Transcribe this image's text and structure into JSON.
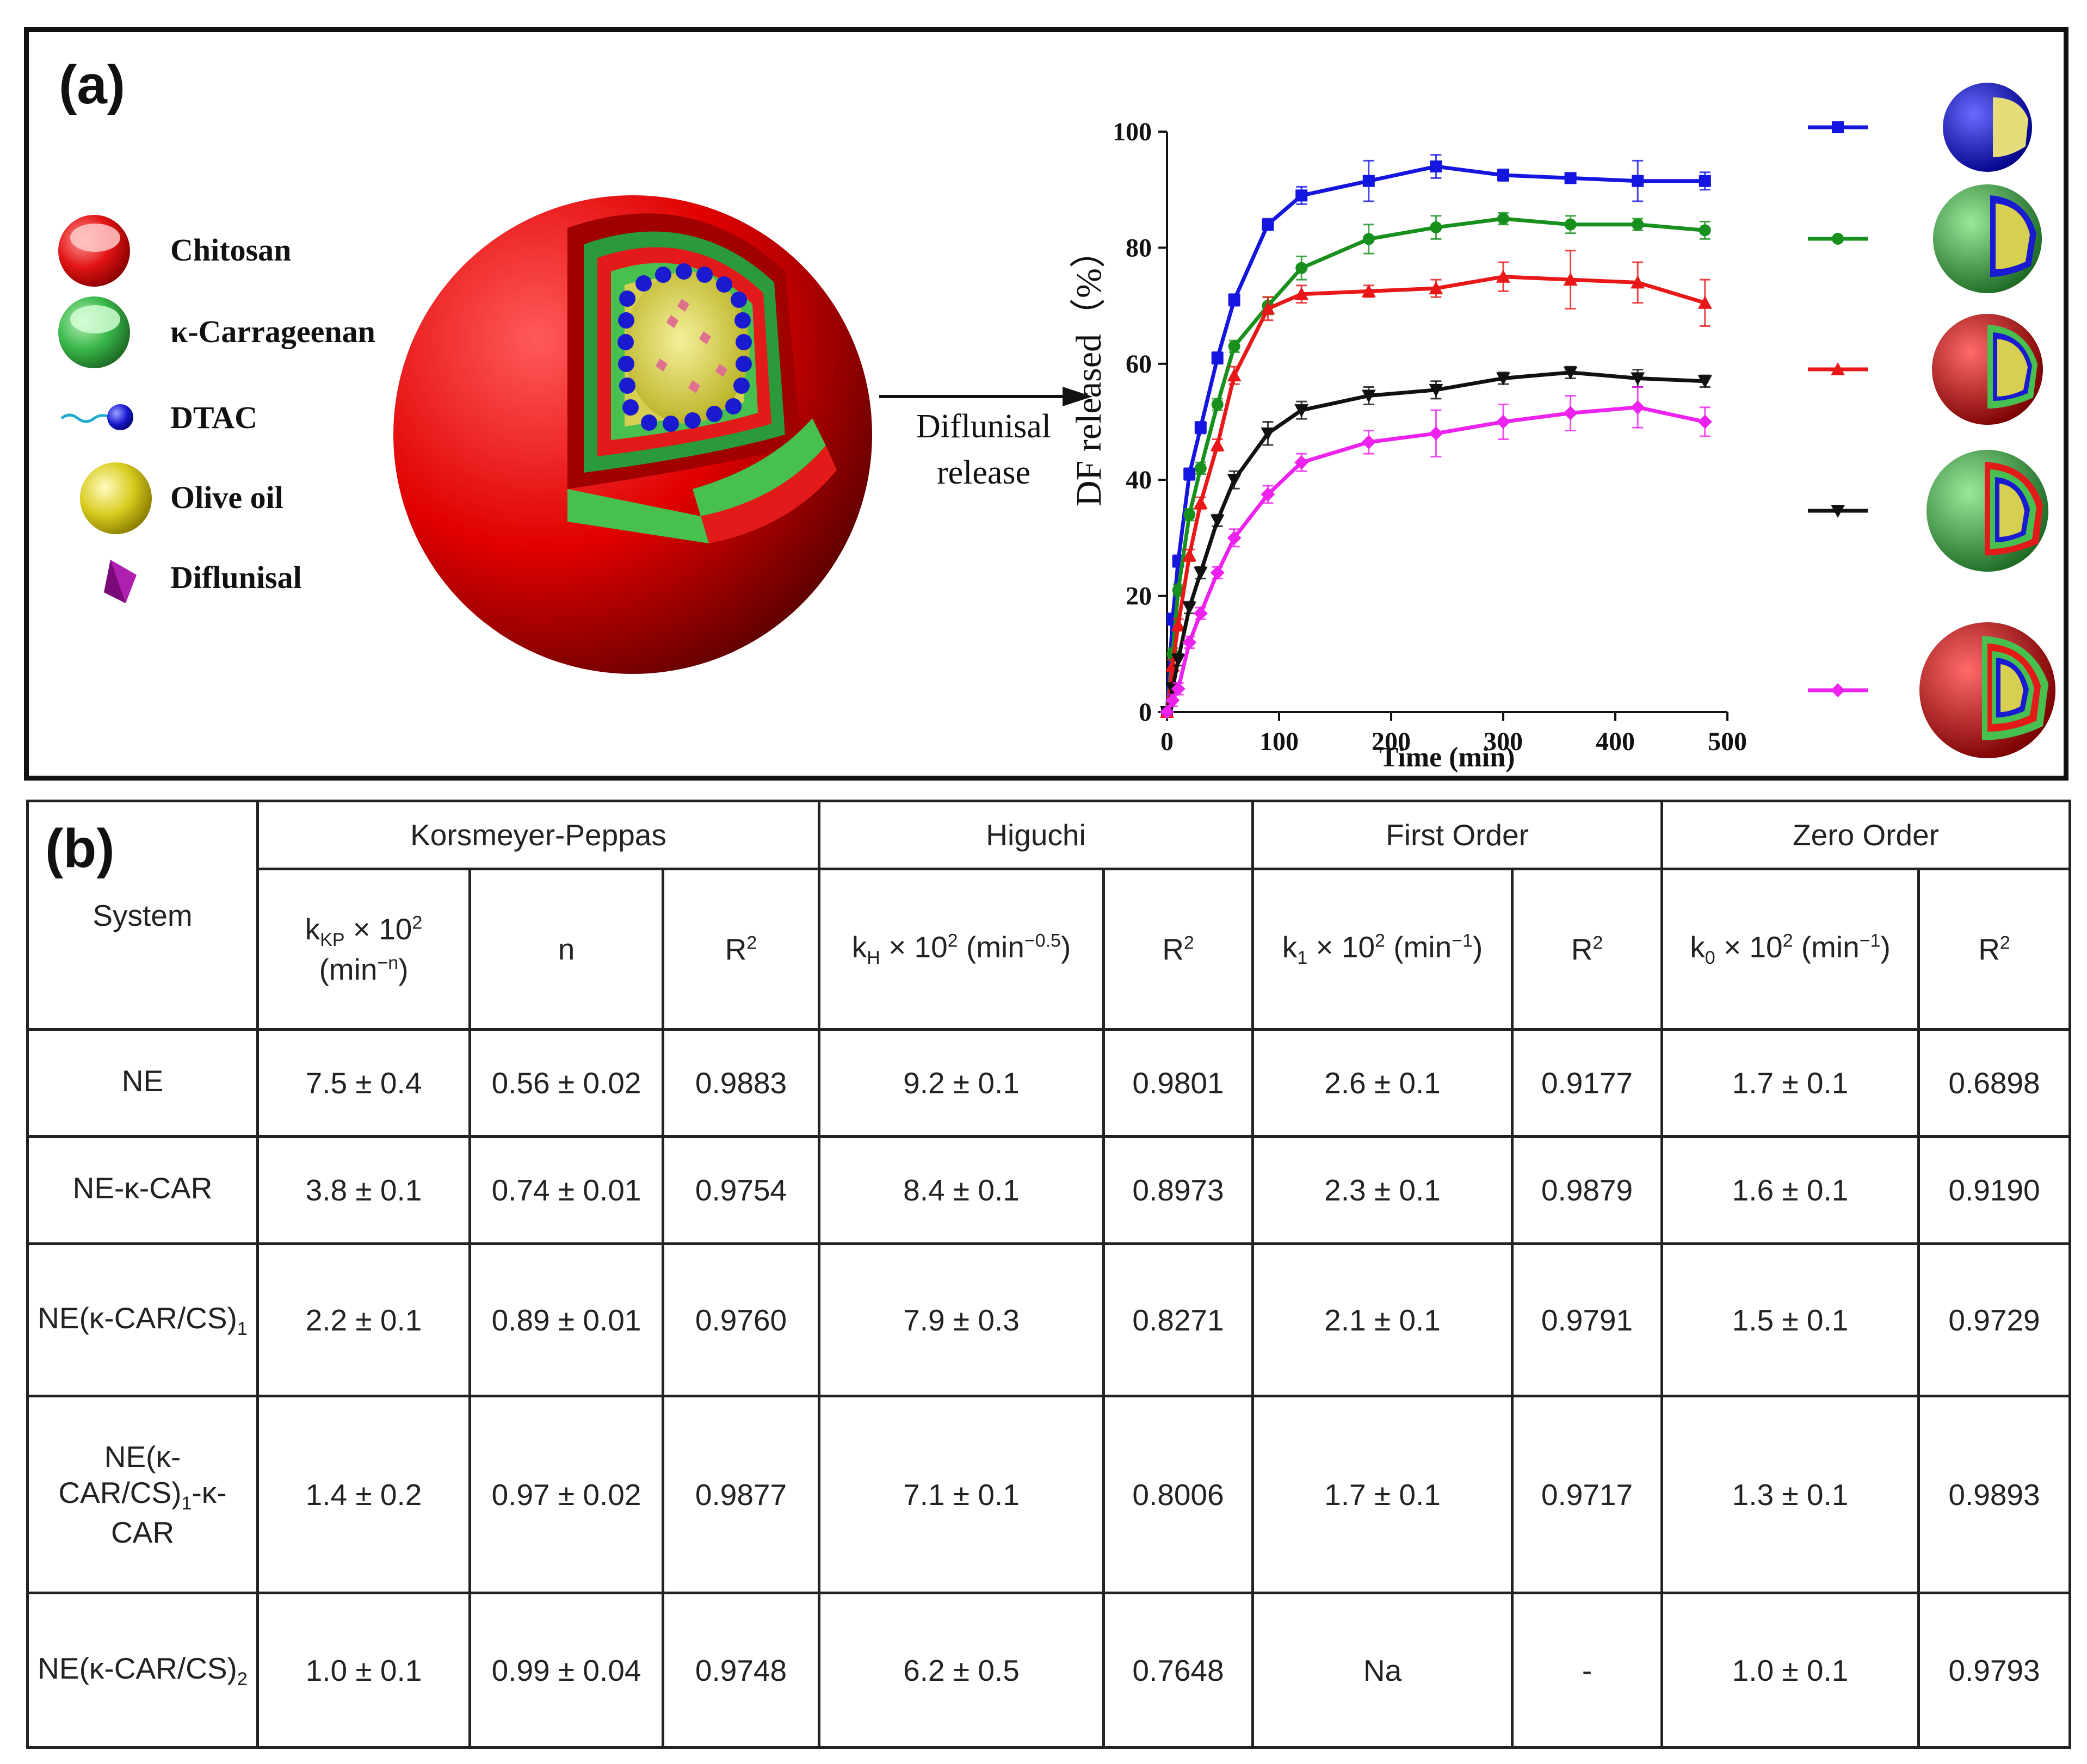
{
  "panel_a": {
    "label": "(a)",
    "legend_items": [
      {
        "label": "Chitosan",
        "icon": "chitosan-shell-icon",
        "color": "#e31414"
      },
      {
        "label": "κ-Carrageenan",
        "icon": "carrageenan-shell-icon",
        "color": "#3ab84a"
      },
      {
        "label": "DTAC",
        "icon": "dtac-surfactant-icon",
        "color": "#1a1ad0"
      },
      {
        "label": "Olive oil",
        "icon": "olive-oil-droplet-icon",
        "color": "#d8cc20"
      },
      {
        "label": "Diflunisal",
        "icon": "diflunisal-crystal-icon",
        "color": "#b020b0"
      }
    ],
    "arrow_label_line1": "Diflunisal",
    "arrow_label_line2": "release"
  },
  "chart_data": {
    "type": "line",
    "title": "",
    "xlabel": "Time (min)",
    "ylabel": "DF released（%）",
    "xlim": [
      0,
      500
    ],
    "ylim": [
      0,
      100
    ],
    "xticks": [
      0,
      100,
      200,
      300,
      400,
      500
    ],
    "yticks": [
      0,
      20,
      40,
      60,
      80,
      100
    ],
    "x": [
      0,
      5,
      10,
      20,
      30,
      45,
      60,
      90,
      120,
      180,
      240,
      300,
      360,
      420,
      480
    ],
    "series": [
      {
        "name": "NE",
        "color": "#1515e0",
        "marker": "square",
        "values": [
          0,
          16,
          26,
          41,
          49,
          61,
          71,
          84,
          89,
          91.5,
          94,
          92.5,
          92,
          91.5,
          91.5
        ],
        "errors": [
          0,
          1,
          1,
          1,
          1,
          1,
          1,
          1,
          1.5,
          3.5,
          2,
          1,
          0.5,
          3.5,
          1.5
        ]
      },
      {
        "name": "NE-κ-CAR",
        "color": "#18901e",
        "marker": "circle",
        "values": [
          0,
          10,
          21,
          34,
          42,
          53,
          63,
          70,
          76.5,
          81.5,
          83.5,
          85,
          84,
          84,
          83
        ],
        "errors": [
          0,
          1,
          1,
          1,
          1,
          1,
          1,
          1.5,
          2,
          2.5,
          2,
          1,
          1.5,
          1,
          1.5
        ]
      },
      {
        "name": "NE(κ-CAR/CS)1",
        "color": "#e81818",
        "marker": "triangle-up",
        "values": [
          0,
          8,
          15,
          27,
          36,
          46,
          58,
          69.5,
          72,
          72.5,
          73,
          75,
          74.5,
          74,
          70.5
        ],
        "errors": [
          0,
          1,
          1,
          1,
          1,
          1,
          1.5,
          2,
          1.5,
          1,
          1.5,
          2.5,
          5,
          3.5,
          4
        ]
      },
      {
        "name": "NE(κ-CAR/CS)1-κ-CAR",
        "color": "#111111",
        "marker": "triangle-down",
        "values": [
          0,
          4,
          9,
          18,
          24,
          33,
          40,
          48,
          52,
          54.5,
          55.5,
          57.5,
          58.5,
          57.5,
          57
        ],
        "errors": [
          0,
          1,
          1,
          1,
          1,
          1,
          1.5,
          2,
          1.5,
          1.5,
          1.5,
          1,
          1,
          1.5,
          1
        ]
      },
      {
        "name": "NE(κ-CAR/CS)2",
        "color": "#ee22ee",
        "marker": "diamond",
        "values": [
          0,
          2,
          4,
          12,
          17,
          24,
          30,
          37.5,
          43,
          46.5,
          48,
          50,
          51.5,
          52.5,
          50
        ],
        "errors": [
          0,
          1,
          1,
          1,
          1,
          1,
          1.5,
          1.5,
          1.5,
          2,
          4,
          3,
          3,
          3.5,
          2.5
        ]
      }
    ],
    "legend": "right, with nanocapsule schematics"
  },
  "panel_b": {
    "label": "(b)",
    "system_header": "System",
    "group_headers": [
      "Korsmeyer-Peppas",
      "Higuchi",
      "First Order",
      "Zero Order"
    ],
    "sub_headers": {
      "kkp_main": "k",
      "kkp_sub": "KP",
      "kkp_times": " × 10",
      "kkp_sup": "2",
      "kkp_unit_open": "(min",
      "kkp_unit_exp": "−n",
      "kkp_unit_close": ")",
      "n": "n",
      "r2_main": "R",
      "r2_sup": "2",
      "kh_main": "k",
      "kh_sub": "H",
      "kh_times": " × 10",
      "kh_sup": "2",
      "kh_unit_open": " (min",
      "kh_unit_exp": "−0.5",
      "kh_unit_close": ")",
      "k1_main": "k",
      "k1_sub": "1",
      "k1_times": " × 10",
      "k1_sup": "2",
      "k1_unit_open": " (min",
      "k1_unit_exp": "−1",
      "k1_unit_close": ")",
      "k0_main": "k",
      "k0_sub": "0",
      "k0_times": " × 10",
      "k0_sup": "2",
      "k0_unit_open": " (min",
      "k0_unit_exp": "−1",
      "k0_unit_close": ")"
    },
    "rows": [
      {
        "system": "NE",
        "sys_sub": "",
        "kkp": "7.5 ± 0.4",
        "n": "0.56 ± 0.02",
        "r2_kp": "0.9883",
        "kh": "9.2 ± 0.1",
        "r2_h": "0.9801",
        "k1": "2.6 ± 0.1",
        "r2_1": "0.9177",
        "k0": "1.7 ± 0.1",
        "r2_0": "0.6898"
      },
      {
        "system": "NE-κ-CAR",
        "sys_sub": "",
        "kkp": "3.8 ± 0.1",
        "n": "0.74 ± 0.01",
        "r2_kp": "0.9754",
        "kh": "8.4 ± 0.1",
        "r2_h": "0.8973",
        "k1": "2.3 ± 0.1",
        "r2_1": "0.9879",
        "k0": "1.6 ± 0.1",
        "r2_0": "0.9190"
      },
      {
        "system": "NE(κ-CAR/CS)",
        "sys_sub": "1",
        "kkp": "2.2 ± 0.1",
        "n": "0.89 ± 0.01",
        "r2_kp": "0.9760",
        "kh": "7.9 ± 0.3",
        "r2_h": "0.8271",
        "k1": "2.1 ± 0.1",
        "r2_1": "0.9791",
        "k0": "1.5 ± 0.1",
        "r2_0": "0.9729"
      },
      {
        "system_l1": "NE(κ-",
        "system_l2": "CAR/CS)",
        "system_l2_sub": "1",
        "system_l2_tail": "-κ-",
        "system_l3": "CAR",
        "kkp": "1.4 ± 0.2",
        "n": "0.97 ± 0.02",
        "r2_kp": "0.9877",
        "kh": "7.1 ± 0.1",
        "r2_h": "0.8006",
        "k1": "1.7 ± 0.1",
        "r2_1": "0.9717",
        "k0": "1.3 ± 0.1",
        "r2_0": "0.9893"
      },
      {
        "system": "NE(κ-CAR/CS)",
        "sys_sub": "2",
        "kkp": "1.0 ± 0.1",
        "n": "0.99 ± 0.04",
        "r2_kp": "0.9748",
        "kh": "6.2 ± 0.5",
        "r2_h": "0.7648",
        "k1": "Na",
        "r2_1": "-",
        "k0": "1.0 ± 0.1",
        "r2_0": "0.9793"
      }
    ]
  }
}
